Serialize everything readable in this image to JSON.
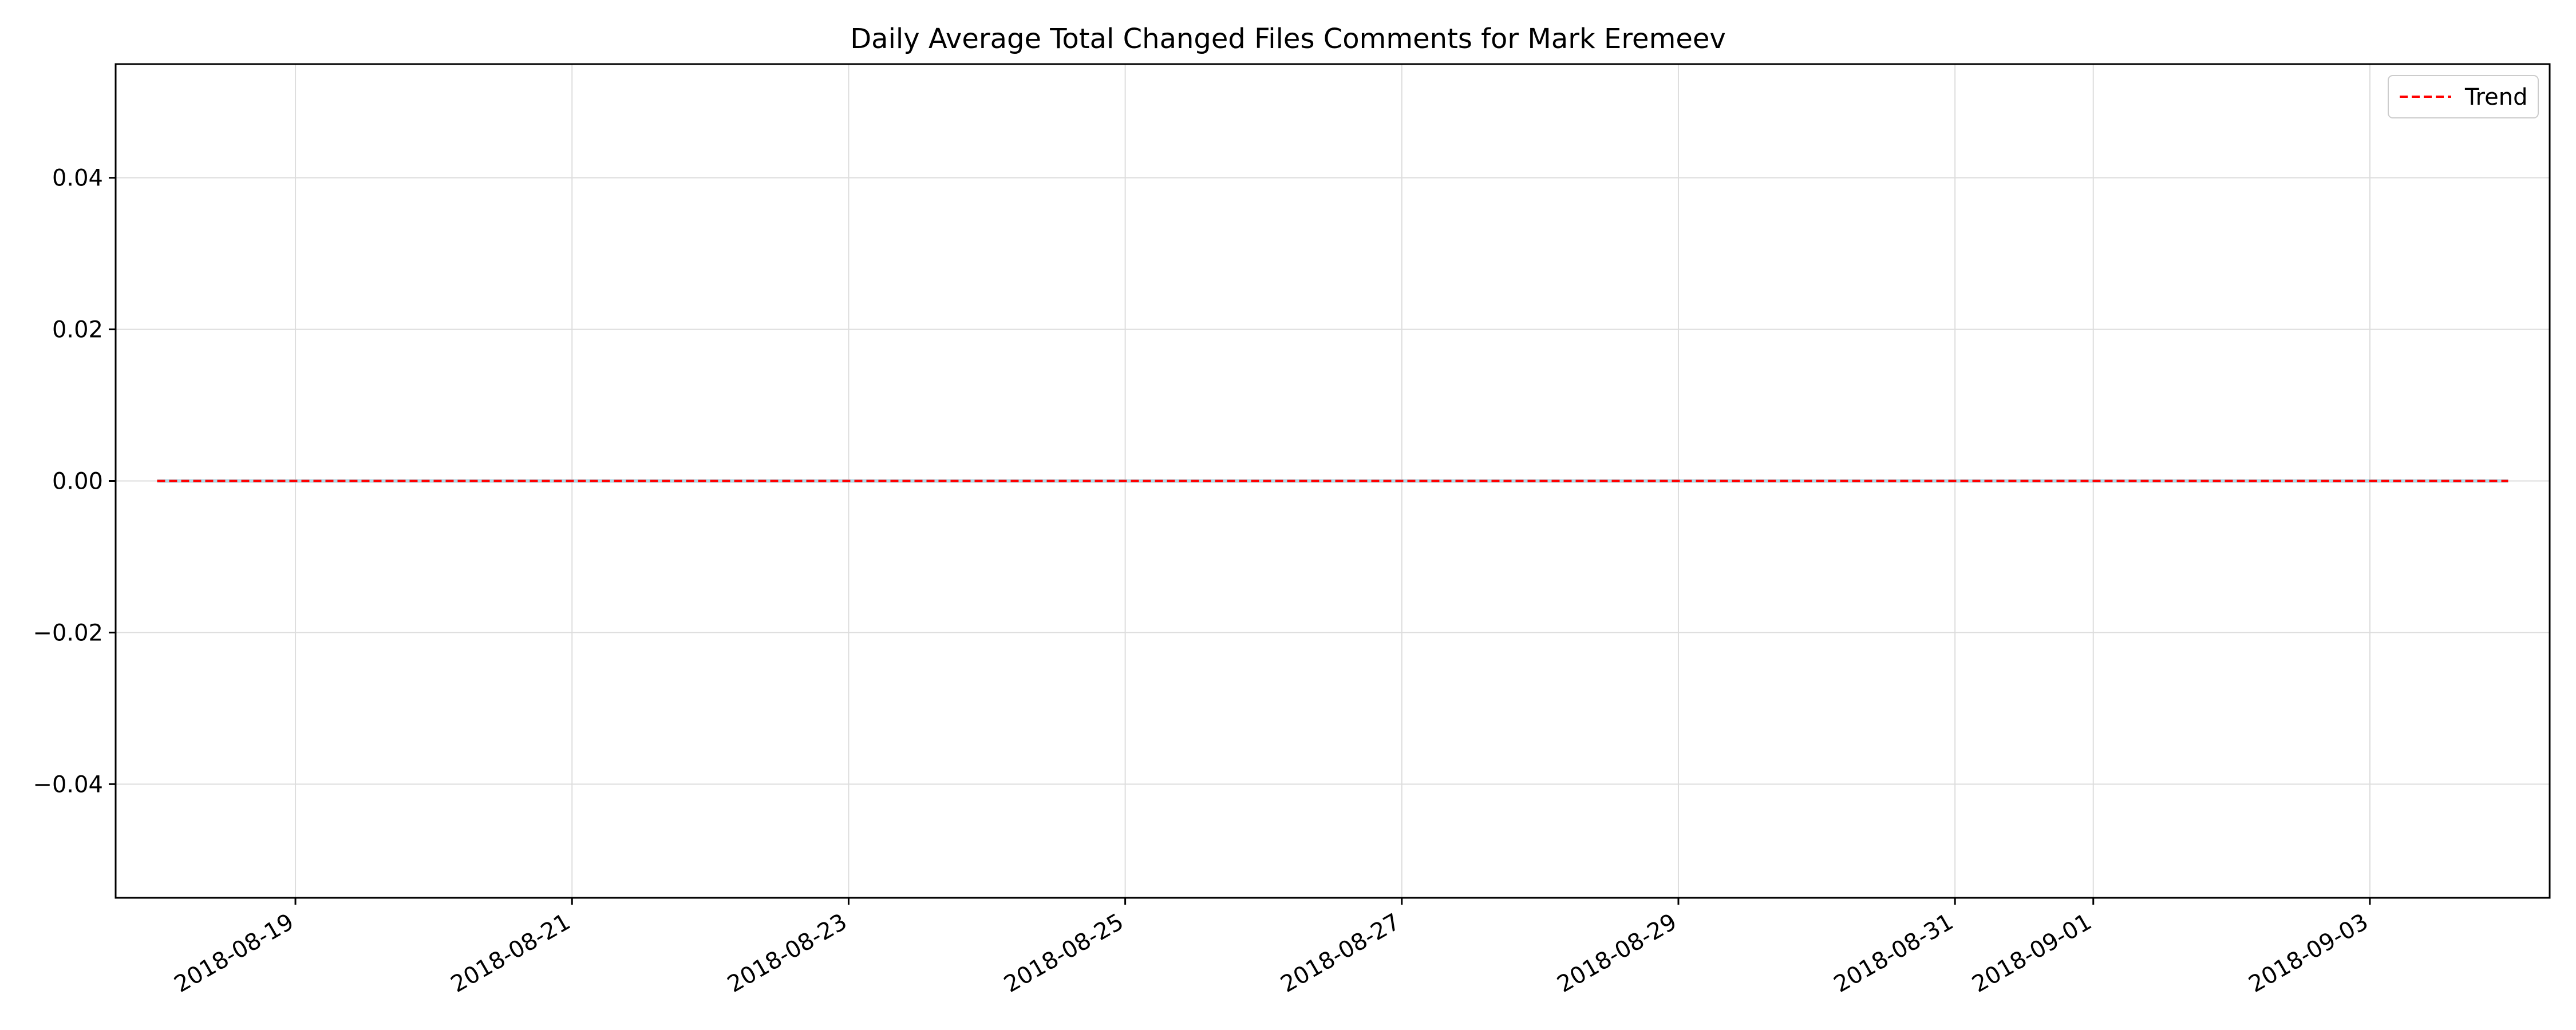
{
  "chart_data": {
    "type": "line",
    "title": "Daily Average Total Changed Files Comments for Mark Eremeev",
    "xlabel": "",
    "ylabel": "",
    "x_axis_type": "date",
    "xlim": [
      "2018-08-17T16:48",
      "2018-09-04T07:12"
    ],
    "ylim": [
      -0.055,
      0.055
    ],
    "x_ticks": [
      "2018-08-19",
      "2018-08-21",
      "2018-08-23",
      "2018-08-25",
      "2018-08-27",
      "2018-08-29",
      "2018-08-31",
      "2018-09-01",
      "2018-09-03"
    ],
    "y_ticks": [
      -0.04,
      -0.02,
      0.0,
      0.02,
      0.04
    ],
    "y_tick_labels": [
      "−0.04",
      "−0.02",
      "0.00",
      "0.02",
      "0.04"
    ],
    "grid": true,
    "legend_position": "top-right",
    "series": [
      {
        "color": "#add8e6",
        "style": "solid",
        "x": [
          "2018-08-18",
          "2018-09-04"
        ],
        "y": [
          0,
          0
        ]
      },
      {
        "name": "Trend",
        "color": "#ff0000",
        "style": "dashed",
        "x": [
          "2018-08-18",
          "2018-09-04"
        ],
        "y": [
          0,
          0
        ]
      }
    ]
  }
}
